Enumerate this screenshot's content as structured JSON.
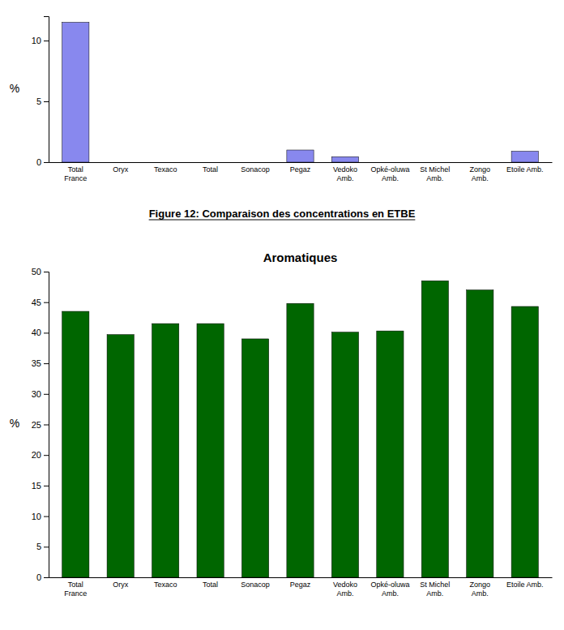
{
  "chart_data": [
    {
      "type": "bar",
      "categories": [
        "Total\nFrance",
        "Oryx",
        "Texaco",
        "Total",
        "Sonacop",
        "Pegaz",
        "Vedoko\nAmb.",
        "Opké-oluwa\nAmb.",
        "St Michel\nAmb.",
        "Zongo\nAmb.",
        "Etoile Amb."
      ],
      "values": [
        11.5,
        0.0,
        0.0,
        0.0,
        0.0,
        1.0,
        0.45,
        0.0,
        0.0,
        0.0,
        0.9
      ],
      "color": "#8888ee",
      "ylabel": "%",
      "ylim": [
        0,
        12
      ],
      "yticks": [
        0,
        5,
        10
      ],
      "annotations": [
        "Figure 12: Comparaison des concentrations en ETBE"
      ],
      "grid": false
    },
    {
      "type": "bar",
      "title": "Aromatiques",
      "categories": [
        "Total\nFrance",
        "Oryx",
        "Texaco",
        "Total",
        "Sonacop",
        "Pegaz",
        "Vedoko\nAmb.",
        "Opké-oluwa\nAmb.",
        "St Michel\nAmb.",
        "Zongo\nAmb.",
        "Etoile Amb."
      ],
      "values": [
        43.5,
        39.7,
        41.5,
        41.5,
        39.0,
        44.8,
        40.1,
        40.3,
        48.5,
        47.0,
        44.3
      ],
      "color": "#006600",
      "ylabel": "%",
      "ylim": [
        0,
        50
      ],
      "yticks": [
        0,
        5,
        10,
        15,
        20,
        25,
        30,
        35,
        40,
        45,
        50
      ],
      "grid": false
    }
  ]
}
